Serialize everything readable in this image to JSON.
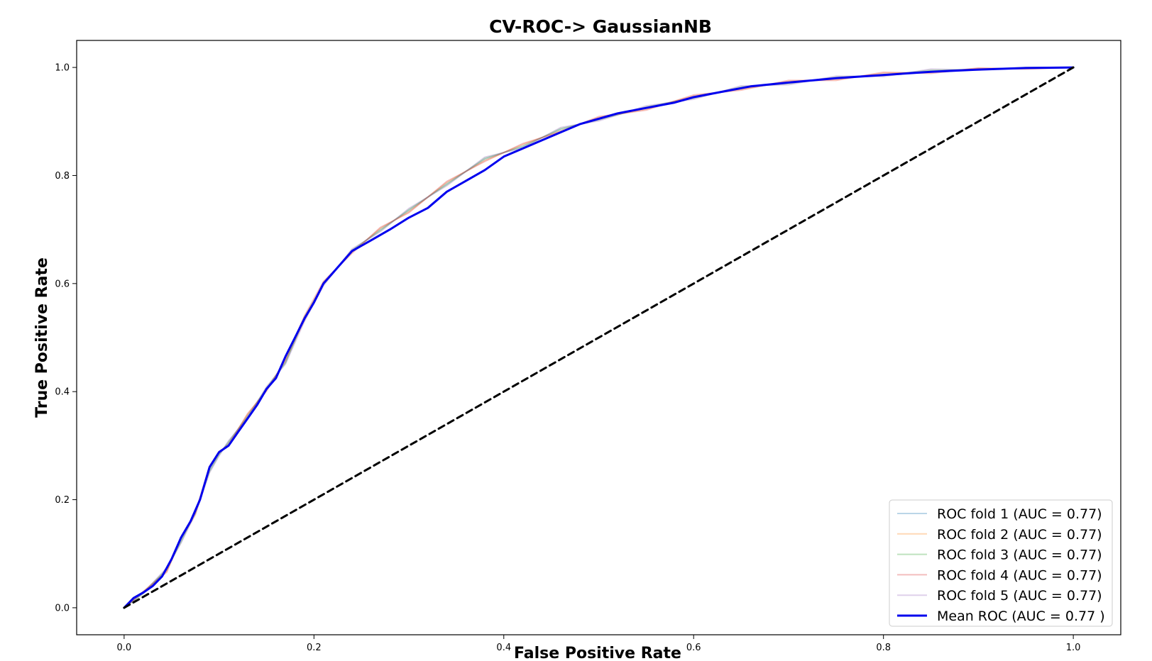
{
  "chart_data": {
    "type": "line",
    "title": "CV-ROC-> GaussianNB",
    "xlabel": "False Positive Rate",
    "ylabel": "True Positive Rate",
    "xlim": [
      -0.05,
      1.05
    ],
    "ylim": [
      -0.05,
      1.05
    ],
    "xticks": [
      "0.0",
      "0.2",
      "0.4",
      "0.6",
      "0.8",
      "1.0"
    ],
    "yticks": [
      "0.0",
      "0.2",
      "0.4",
      "0.6",
      "0.8",
      "1.0"
    ],
    "grid": false,
    "legend_position": "lower-right",
    "series": [
      {
        "name": "ROC fold 1 (AUC = 0.77)",
        "color": "#1f77b4",
        "opacity": 0.3,
        "linewidth": 2,
        "x": [
          0,
          0.02,
          0.045,
          0.06,
          0.075,
          0.09,
          0.1,
          0.11,
          0.13,
          0.15,
          0.17,
          0.19,
          0.21,
          0.24,
          0.27,
          0.3,
          0.34,
          0.38,
          0.42,
          0.46,
          0.5,
          0.55,
          0.6,
          0.65,
          0.7,
          0.75,
          0.8,
          0.85,
          0.9,
          0.95,
          1.0
        ],
        "y": [
          0,
          0.028,
          0.07,
          0.125,
          0.175,
          0.255,
          0.285,
          0.305,
          0.355,
          0.405,
          0.455,
          0.535,
          0.6,
          0.66,
          0.7,
          0.735,
          0.785,
          0.83,
          0.855,
          0.885,
          0.905,
          0.925,
          0.945,
          0.962,
          0.972,
          0.98,
          0.987,
          0.993,
          0.997,
          0.999,
          1.0
        ]
      },
      {
        "name": "ROC fold 2 (AUC = 0.77)",
        "color": "#ff7f0e",
        "opacity": 0.3,
        "linewidth": 2,
        "x": [
          0,
          0.02,
          0.045,
          0.06,
          0.075,
          0.09,
          0.1,
          0.11,
          0.13,
          0.15,
          0.17,
          0.19,
          0.21,
          0.24,
          0.27,
          0.3,
          0.34,
          0.38,
          0.42,
          0.46,
          0.5,
          0.55,
          0.6,
          0.65,
          0.7,
          0.75,
          0.8,
          0.85,
          0.9,
          0.95,
          1.0
        ],
        "y": [
          0,
          0.03,
          0.068,
          0.128,
          0.172,
          0.258,
          0.287,
          0.303,
          0.357,
          0.403,
          0.457,
          0.532,
          0.602,
          0.658,
          0.702,
          0.733,
          0.787,
          0.828,
          0.857,
          0.883,
          0.907,
          0.923,
          0.947,
          0.96,
          0.974,
          0.978,
          0.989,
          0.991,
          0.998,
          0.998,
          1.0
        ]
      },
      {
        "name": "ROC fold 3 (AUC = 0.77)",
        "color": "#2ca02c",
        "opacity": 0.3,
        "linewidth": 2,
        "x": [
          0,
          0.02,
          0.045,
          0.06,
          0.075,
          0.09,
          0.1,
          0.11,
          0.13,
          0.15,
          0.17,
          0.19,
          0.21,
          0.24,
          0.27,
          0.3,
          0.34,
          0.38,
          0.42,
          0.46,
          0.5,
          0.55,
          0.6,
          0.65,
          0.7,
          0.75,
          0.8,
          0.85,
          0.9,
          0.95,
          1.0
        ],
        "y": [
          0,
          0.026,
          0.072,
          0.122,
          0.178,
          0.252,
          0.283,
          0.307,
          0.353,
          0.407,
          0.453,
          0.538,
          0.598,
          0.662,
          0.698,
          0.737,
          0.783,
          0.832,
          0.853,
          0.887,
          0.903,
          0.927,
          0.943,
          0.964,
          0.97,
          0.982,
          0.985,
          0.995,
          0.996,
          1.0,
          1.0
        ]
      },
      {
        "name": "ROC fold 4 (AUC = 0.77)",
        "color": "#d62728",
        "opacity": 0.3,
        "linewidth": 2,
        "x": [
          0,
          0.02,
          0.045,
          0.06,
          0.075,
          0.09,
          0.1,
          0.11,
          0.13,
          0.15,
          0.17,
          0.19,
          0.21,
          0.24,
          0.27,
          0.3,
          0.34,
          0.38,
          0.42,
          0.46,
          0.5,
          0.55,
          0.6,
          0.65,
          0.7,
          0.75,
          0.8,
          0.85,
          0.9,
          0.95,
          1.0
        ],
        "y": [
          0,
          0.029,
          0.066,
          0.13,
          0.176,
          0.262,
          0.289,
          0.301,
          0.359,
          0.401,
          0.459,
          0.54,
          0.604,
          0.656,
          0.704,
          0.731,
          0.789,
          0.826,
          0.859,
          0.881,
          0.909,
          0.921,
          0.949,
          0.958,
          0.976,
          0.976,
          0.991,
          0.989,
          0.999,
          0.997,
          1.0
        ]
      },
      {
        "name": "ROC fold 5 (AUC = 0.77)",
        "color": "#9467bd",
        "opacity": 0.3,
        "linewidth": 2,
        "x": [
          0,
          0.02,
          0.045,
          0.06,
          0.075,
          0.09,
          0.1,
          0.11,
          0.13,
          0.15,
          0.17,
          0.19,
          0.21,
          0.24,
          0.27,
          0.3,
          0.34,
          0.38,
          0.42,
          0.46,
          0.5,
          0.55,
          0.6,
          0.65,
          0.7,
          0.75,
          0.8,
          0.85,
          0.9,
          0.95,
          1.0
        ],
        "y": [
          0,
          0.027,
          0.074,
          0.12,
          0.174,
          0.25,
          0.281,
          0.309,
          0.351,
          0.409,
          0.451,
          0.53,
          0.596,
          0.664,
          0.696,
          0.739,
          0.781,
          0.834,
          0.851,
          0.889,
          0.901,
          0.929,
          0.941,
          0.966,
          0.968,
          0.984,
          0.983,
          0.997,
          0.995,
          1.0,
          1.0
        ]
      },
      {
        "name": "Mean ROC (AUC = 0.77 )",
        "color": "#0000ee",
        "opacity": 1.0,
        "linewidth": 3,
        "x": [
          0,
          0.01,
          0.02,
          0.03,
          0.04,
          0.05,
          0.06,
          0.07,
          0.08,
          0.09,
          0.1,
          0.11,
          0.12,
          0.13,
          0.14,
          0.15,
          0.16,
          0.17,
          0.18,
          0.19,
          0.2,
          0.21,
          0.22,
          0.24,
          0.26,
          0.28,
          0.3,
          0.32,
          0.34,
          0.36,
          0.38,
          0.4,
          0.42,
          0.44,
          0.46,
          0.48,
          0.5,
          0.52,
          0.55,
          0.58,
          0.6,
          0.63,
          0.66,
          0.7,
          0.75,
          0.8,
          0.85,
          0.9,
          0.95,
          1.0
        ],
        "y": [
          0,
          0.018,
          0.028,
          0.04,
          0.058,
          0.09,
          0.13,
          0.16,
          0.2,
          0.26,
          0.288,
          0.3,
          0.325,
          0.35,
          0.375,
          0.405,
          0.425,
          0.465,
          0.5,
          0.535,
          0.565,
          0.6,
          0.62,
          0.66,
          0.68,
          0.7,
          0.722,
          0.74,
          0.77,
          0.79,
          0.81,
          0.835,
          0.85,
          0.865,
          0.88,
          0.895,
          0.905,
          0.915,
          0.925,
          0.935,
          0.945,
          0.955,
          0.965,
          0.972,
          0.98,
          0.986,
          0.992,
          0.996,
          0.999,
          1.0
        ]
      },
      {
        "name": "",
        "color": "#000000",
        "opacity": 1.0,
        "linewidth": 3,
        "dashed": true,
        "x": [
          0,
          1
        ],
        "y": [
          0,
          1
        ]
      }
    ]
  }
}
